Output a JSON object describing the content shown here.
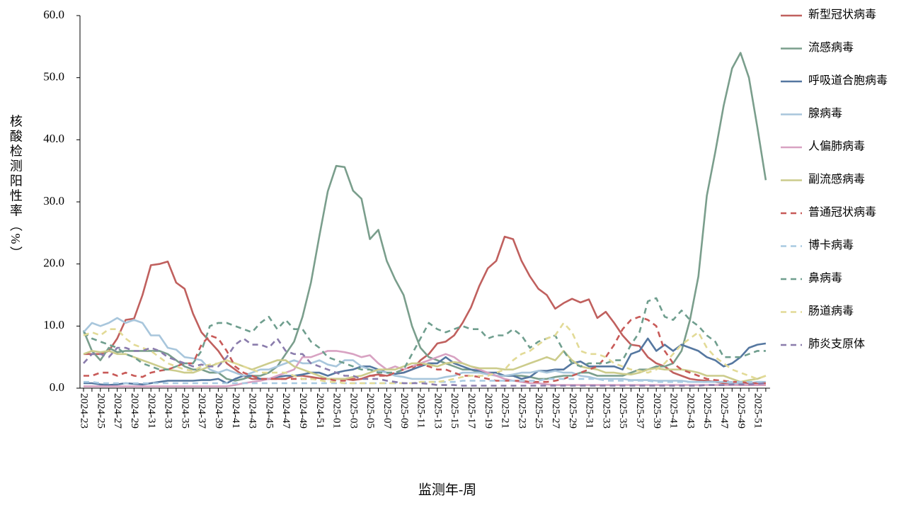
{
  "chart_data": {
    "type": "line",
    "y_label": "核酸检测阳性率（%）",
    "x_label": "监测年-周",
    "categories": [
      "2024-23",
      null,
      "2024-25",
      null,
      "2024-27",
      null,
      "2024-29",
      null,
      "2024-31",
      null,
      "2024-33",
      null,
      "2024-35",
      null,
      "2024-37",
      null,
      "2024-39",
      null,
      "2024-41",
      null,
      "2024-43",
      null,
      "2024-45",
      null,
      "2024-47",
      null,
      "2024-49",
      null,
      "2024-51",
      null,
      "2025-01",
      null,
      "2025-03",
      null,
      "2025-05",
      null,
      "2025-07",
      null,
      "2025-09",
      null,
      "2025-11",
      null,
      "2025-13",
      null,
      "2025-15",
      null,
      "2025-17",
      null,
      "2025-19",
      null,
      "2025-21",
      null,
      "2025-23",
      null,
      "2025-25",
      null,
      "2025-27",
      null,
      "2025-29",
      null,
      "2025-31",
      null,
      "2025-33",
      null,
      "2025-35",
      null,
      "2025-37",
      null,
      "2025-39",
      null,
      "2025-41",
      null,
      "2025-43",
      null,
      "2025-45",
      null,
      "2025-47",
      null,
      "2025-49",
      null,
      "2025-51",
      null
    ],
    "ylim": [
      0,
      60
    ],
    "yticks": [
      {
        "value": 0,
        "label": "0.0"
      },
      {
        "value": 10,
        "label": "10.0"
      },
      {
        "value": 20,
        "label": "20.0"
      },
      {
        "value": 30,
        "label": "30.0"
      },
      {
        "value": 40,
        "label": "40.0"
      },
      {
        "value": 50,
        "label": "50.0"
      },
      {
        "value": 60,
        "label": "60.0"
      }
    ],
    "legend": "right",
    "series": [
      {
        "name": "新型冠状病毒",
        "color": "#c0605e",
        "dashed": false,
        "values": [
          5.5,
          5.5,
          5.5,
          6,
          8,
          11,
          11.2,
          15,
          19.8,
          20,
          20.4,
          17,
          16,
          12,
          9,
          7.5,
          6,
          4,
          3,
          2,
          1.5,
          1.5,
          1.5,
          1.5,
          1.5,
          2,
          2,
          1.8,
          1.6,
          1.5,
          1.5,
          1.5,
          1.3,
          1.5,
          2,
          2.2,
          2,
          2.3,
          2.5,
          3,
          4.5,
          5.5,
          7.2,
          7.5,
          8.5,
          10.5,
          13,
          16.5,
          19.3,
          20.5,
          24.4,
          24,
          20.5,
          18,
          16,
          15,
          12.8,
          13.7,
          14.4,
          13.8,
          14.3,
          11.3,
          12.3,
          10.5,
          8.5,
          7,
          6.8,
          5,
          4,
          3.5,
          2.5,
          2,
          1.5,
          1.3,
          1.2,
          1,
          0.8,
          0.6,
          0.5,
          0.5,
          0.5,
          0.5
        ]
      },
      {
        "name": "流感病毒",
        "color": "#7a9e8c",
        "dashed": false,
        "values": [
          9.3,
          6,
          4.5,
          6.5,
          5.8,
          6,
          6,
          6,
          6,
          6,
          5.5,
          4.5,
          3.5,
          3,
          3,
          2.5,
          2.5,
          1.5,
          1.2,
          1.5,
          2,
          2,
          2.5,
          3.5,
          5.5,
          7.5,
          11.5,
          17,
          24.5,
          31.7,
          35.8,
          35.6,
          31.8,
          30.5,
          24,
          25.5,
          20.5,
          17.5,
          15,
          10,
          6.5,
          5,
          4.5,
          4,
          3.5,
          3,
          3,
          2.5,
          2.5,
          2,
          2,
          2,
          2,
          1.8,
          1.5,
          1.5,
          1.8,
          2,
          2,
          2.5,
          2.5,
          2,
          2,
          2,
          2,
          2.5,
          3,
          3,
          3.5,
          3.5,
          4,
          6,
          11,
          18,
          31,
          38,
          45.5,
          51.5,
          54,
          50,
          42,
          33.5
        ]
      },
      {
        "name": "呼吸道合胞病毒",
        "color": "#5577a0",
        "dashed": false,
        "values": [
          0.8,
          0.8,
          0.6,
          0.5,
          0.6,
          0.8,
          0.7,
          0.6,
          0.8,
          1,
          1.2,
          1.2,
          1.2,
          1.2,
          1.3,
          1.3,
          1.5,
          0.8,
          1.5,
          2,
          2,
          1.5,
          1.5,
          1.8,
          2,
          2,
          2.2,
          2.5,
          2.5,
          2,
          2.5,
          2.8,
          3,
          3.5,
          3.5,
          3,
          2.5,
          2.3,
          2.5,
          3,
          3.5,
          4,
          4,
          5,
          4,
          3.5,
          3,
          2.8,
          2.5,
          2.5,
          2,
          2,
          1.5,
          1.8,
          2.8,
          2.8,
          3,
          3,
          4,
          4.3,
          3.5,
          3.5,
          3.5,
          3.5,
          3,
          5.5,
          6,
          8,
          6,
          7,
          6,
          7,
          6.5,
          6,
          5,
          4.5,
          3.5,
          4,
          5,
          6.5,
          7,
          7.2
        ]
      },
      {
        "name": "腺病毒",
        "color": "#a8c6dc",
        "dashed": false,
        "values": [
          9,
          10.5,
          10,
          10.5,
          11.3,
          10.5,
          11,
          10.5,
          8.5,
          8.5,
          6.5,
          6.2,
          5,
          4.8,
          4.5,
          3,
          2.5,
          3,
          2.5,
          2,
          2.5,
          3,
          3,
          3.5,
          4,
          4.5,
          4,
          4,
          4.5,
          3.8,
          3.5,
          4.5,
          4.5,
          3.5,
          3,
          2.8,
          2.5,
          2,
          1.8,
          1.5,
          1.5,
          1.5,
          1.5,
          1.8,
          2,
          2.5,
          2.5,
          2.5,
          2.2,
          2,
          2,
          2.2,
          2.5,
          2.5,
          2.8,
          2.5,
          2.8,
          2.5,
          2.5,
          2,
          1.8,
          1.5,
          1.5,
          1.5,
          1.5,
          1.3,
          1.3,
          1.3,
          1.2,
          1.2,
          1.2,
          1.2,
          1,
          1,
          1,
          1,
          1,
          0.8,
          0.8,
          0.8,
          1,
          1
        ]
      },
      {
        "name": "人偏肺病毒",
        "color": "#d8a2c2",
        "dashed": false,
        "values": [
          0.3,
          0.3,
          0.3,
          0.3,
          0.3,
          0.3,
          0.3,
          0.3,
          0.3,
          0.3,
          0.3,
          0.3,
          0.3,
          0.3,
          0.3,
          0.3,
          0.3,
          0.3,
          0.5,
          0.8,
          1,
          1.2,
          1.5,
          2,
          2.5,
          3,
          5,
          5,
          5.5,
          6,
          6,
          5.8,
          5.5,
          5,
          5.3,
          4,
          3,
          3.5,
          3,
          3.5,
          4,
          4.5,
          5,
          5.5,
          5,
          4,
          3.5,
          3,
          2.5,
          2,
          1.5,
          1.2,
          1,
          0.8,
          0.8,
          0.6,
          0.5,
          0.5,
          0.5,
          0.5,
          0.5,
          0.5,
          0.5,
          0.5,
          0.5,
          0.5,
          0.5,
          0.5,
          0.5,
          0.5,
          0.5,
          0.5,
          0.5,
          0.5,
          0.5,
          0.5,
          0.5,
          0.5,
          0.5,
          0.5,
          0.5,
          0.5
        ]
      },
      {
        "name": "副流感病毒",
        "color": "#cccc8c",
        "dashed": false,
        "values": [
          5.5,
          6,
          5.8,
          6,
          5.5,
          5.5,
          5,
          4.5,
          4,
          3.5,
          3,
          2.8,
          2.5,
          2.5,
          3,
          3.5,
          4,
          4.5,
          4,
          3.5,
          3,
          3.5,
          4,
          4.5,
          4.5,
          3.5,
          3,
          2.5,
          2,
          1.5,
          1.5,
          1.5,
          1.8,
          2,
          2.5,
          3,
          3,
          3,
          3.5,
          4,
          4,
          3.8,
          3.5,
          4,
          4.2,
          4,
          3.5,
          3.2,
          3.2,
          3.2,
          3,
          3,
          3.5,
          4,
          4.5,
          5,
          4.5,
          6,
          4.5,
          3.5,
          3.2,
          3,
          2.5,
          2.5,
          2.3,
          2.2,
          2.5,
          3,
          3.2,
          3,
          3,
          3,
          2.8,
          2.5,
          2,
          2,
          2,
          1.5,
          1,
          1.3,
          1.5,
          2
        ]
      },
      {
        "name": "普通冠状病毒",
        "color": "#c85a58",
        "dashed": true,
        "values": [
          2,
          2,
          2.5,
          2.5,
          2,
          2.5,
          2,
          1.8,
          2.5,
          2.8,
          3,
          3.5,
          4,
          4,
          7,
          8.5,
          8,
          6,
          3.5,
          2.5,
          2,
          1.5,
          1.5,
          1.5,
          1.5,
          1.5,
          1.5,
          1.5,
          1.5,
          1.5,
          1.2,
          1.2,
          1.5,
          1.5,
          2,
          2,
          2,
          2.5,
          3,
          3.5,
          3.8,
          3.5,
          3,
          3,
          2.5,
          2,
          2,
          1.8,
          1.5,
          1.2,
          1.2,
          1.2,
          1.2,
          1,
          1,
          1,
          1.2,
          1.5,
          2,
          2.5,
          3,
          3.5,
          5,
          7,
          9.5,
          11,
          11.5,
          11,
          10,
          6,
          4,
          3,
          2.5,
          2,
          1.5,
          1.3,
          1.2,
          1,
          1,
          0.8,
          0.8,
          0.8
        ]
      },
      {
        "name": "博卡病毒",
        "color": "#a8cae2",
        "dashed": true,
        "values": [
          1,
          1,
          0.8,
          0.8,
          0.8,
          0.8,
          0.8,
          0.8,
          0.8,
          0.8,
          0.8,
          0.8,
          0.8,
          0.8,
          0.8,
          0.8,
          0.8,
          0.8,
          0.8,
          0.8,
          0.8,
          0.8,
          0.8,
          0.8,
          0.8,
          0.8,
          0.8,
          0.8,
          0.8,
          0.8,
          0.8,
          0.8,
          0.8,
          0.8,
          0.8,
          0.8,
          0.8,
          0.8,
          0.8,
          0.8,
          1,
          1,
          1,
          1,
          1,
          1.2,
          1.2,
          1.2,
          1.2,
          1.2,
          1.2,
          1.2,
          1.2,
          1.2,
          1.2,
          1.5,
          1.5,
          1.5,
          1.5,
          1.5,
          1.5,
          1.5,
          1.2,
          1.2,
          1.2,
          1.2,
          1.2,
          1.2,
          1,
          1,
          1,
          1,
          1,
          1,
          1,
          1,
          1,
          1,
          1,
          1,
          1,
          1
        ]
      },
      {
        "name": "鼻病毒",
        "color": "#6f9e8e",
        "dashed": true,
        "values": [
          9,
          8,
          7.5,
          7,
          6.5,
          5.5,
          5,
          4,
          3.5,
          3,
          3,
          3.5,
          4,
          4,
          6,
          10,
          10.5,
          10.5,
          10,
          9.5,
          9,
          10.5,
          11.5,
          9.5,
          11,
          9.5,
          9.5,
          7.5,
          6.5,
          5,
          4.5,
          4,
          3.5,
          3,
          3,
          2.5,
          2.5,
          2.5,
          3,
          5.5,
          8,
          10.5,
          9.5,
          9,
          9.5,
          10,
          9.5,
          9.5,
          8,
          8.5,
          8.5,
          9.5,
          8.5,
          6.5,
          7.5,
          8,
          8.5,
          6,
          4,
          3.5,
          4,
          4,
          4,
          4.5,
          4.5,
          7,
          9,
          14,
          14.5,
          11.5,
          11,
          12.5,
          11,
          10,
          8.5,
          7.5,
          5,
          5,
          5,
          5.5,
          6,
          6
        ]
      },
      {
        "name": "肠道病毒",
        "color": "#e2da96",
        "dashed": true,
        "values": [
          8.5,
          9,
          8.5,
          9.5,
          9.5,
          8,
          7,
          6.5,
          6,
          5,
          4,
          3.5,
          3,
          2.8,
          3.5,
          3.8,
          4,
          4.5,
          4,
          3.5,
          3,
          2.5,
          2.5,
          2.5,
          2.5,
          2,
          1.5,
          1.5,
          1.3,
          1,
          1,
          0.8,
          0.8,
          0.8,
          0.8,
          0.8,
          0.8,
          0.8,
          0.8,
          0.8,
          1,
          1,
          1,
          1.2,
          1.5,
          1.8,
          2,
          2,
          2,
          2.5,
          3,
          4.5,
          5.5,
          6,
          7,
          8,
          8.5,
          10.5,
          9,
          6,
          5.5,
          5.5,
          5,
          4,
          3.5,
          3,
          2.8,
          2.5,
          3,
          4,
          5.5,
          7,
          8,
          9,
          6.5,
          5,
          4,
          3,
          2.5,
          2,
          1.5,
          2
        ]
      },
      {
        "name": "肺炎支原体",
        "color": "#8a7cac",
        "dashed": true,
        "values": [
          4,
          5.5,
          5.5,
          5,
          6.5,
          6.5,
          6,
          6,
          6.5,
          6,
          5,
          4.5,
          4,
          3.5,
          3.8,
          3.5,
          3.5,
          5,
          7,
          8,
          7,
          7,
          6.5,
          8,
          6,
          5.5,
          5.5,
          4,
          3.5,
          3,
          2.5,
          2,
          2,
          1.5,
          1.5,
          1.5,
          1.2,
          1,
          0.8,
          0.8,
          0.8,
          0.7,
          0.5,
          0.5,
          0.5,
          0.4,
          0.4,
          0.4,
          0.4,
          0.4,
          0.4,
          0.4,
          0.4,
          0.4,
          0.4,
          0.4,
          0.4,
          0.4,
          0.4,
          0.4,
          0.4,
          0.4,
          0.4,
          0.4,
          0.4,
          0.4,
          0.4,
          0.4,
          0.4,
          0.4,
          0.4,
          0.4,
          0.4,
          0.4,
          0.5,
          0.5,
          0.5,
          0.6,
          0.6,
          0.6,
          0.7,
          0.8
        ]
      }
    ]
  }
}
